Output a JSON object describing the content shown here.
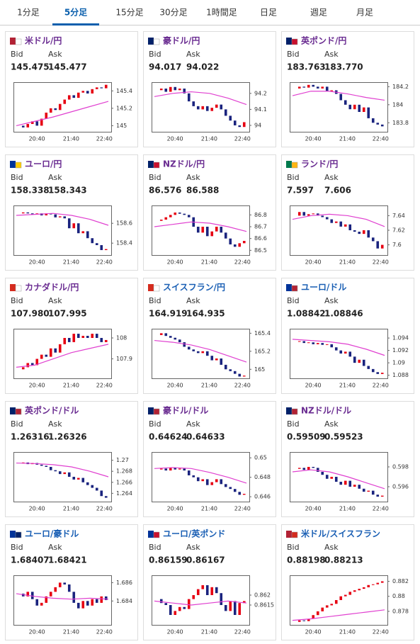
{
  "tabs": [
    "1分足",
    "5分足",
    "15分足",
    "30分足",
    "1時間足",
    "日足",
    "週足",
    "月足"
  ],
  "active_tab": 1,
  "labels": {
    "bid": "Bid",
    "ask": "Ask"
  },
  "time_labels": [
    "20:40",
    "21:40",
    "22:40"
  ],
  "cards": [
    {
      "pair": "米ドル/円",
      "color": "#6a2c91",
      "bid": "145.475",
      "ask": "145.477",
      "chart": {
        "type": "candlestick",
        "ylim": [
          144.93,
          145.5
        ],
        "yticks": [
          145.4,
          145.2,
          145
        ],
        "closes": [
          145.0,
          144.98,
          145.02,
          145.05,
          145.0,
          145.08,
          145.15,
          145.2,
          145.18,
          145.25,
          145.3,
          145.35,
          145.32,
          145.38,
          145.4,
          145.37,
          145.42,
          145.44,
          145.43,
          145.47
        ],
        "ma": [
          145.0,
          145.05,
          145.1,
          145.16,
          145.22,
          145.28
        ]
      }
    },
    {
      "pair": "豪ドル/円",
      "color": "#6a2c91",
      "bid": "94.017",
      "ask": "94.022",
      "chart": {
        "type": "candlestick",
        "ylim": [
          93.96,
          94.27
        ],
        "yticks": [
          94.2,
          94.1,
          94
        ],
        "closes": [
          94.22,
          94.23,
          94.21,
          94.24,
          94.22,
          94.23,
          94.2,
          94.15,
          94.12,
          94.1,
          94.12,
          94.09,
          94.11,
          94.13,
          94.1,
          94.06,
          94.03,
          94.0,
          93.99,
          94.02
        ],
        "ma": [
          94.18,
          94.2,
          94.21,
          94.2,
          94.17,
          94.13
        ]
      }
    },
    {
      "pair": "英ポンド/円",
      "color": "#6a2c91",
      "bid": "183.763",
      "ask": "183.770",
      "chart": {
        "type": "candlestick",
        "ylim": [
          183.7,
          184.25
        ],
        "yticks": [
          184.2,
          184,
          183.8
        ],
        "closes": [
          184.18,
          184.2,
          184.19,
          184.22,
          184.2,
          184.18,
          184.2,
          184.15,
          184.16,
          184.12,
          184.05,
          184.0,
          183.95,
          184.0,
          183.92,
          183.97,
          183.85,
          183.8,
          183.78,
          183.76
        ],
        "ma": [
          184.1,
          184.15,
          184.15,
          184.12,
          184.08,
          184.05
        ]
      }
    },
    {
      "pair": "ユーロ/円",
      "color": "#6a2c91",
      "bid": "158.338",
      "ask": "158.343",
      "chart": {
        "type": "candlestick",
        "ylim": [
          158.28,
          158.78
        ],
        "yticks": [
          158.6,
          158.4
        ],
        "closes": [
          158.7,
          158.71,
          158.7,
          158.69,
          158.7,
          158.68,
          158.7,
          158.69,
          158.66,
          158.67,
          158.65,
          158.55,
          158.6,
          158.5,
          158.52,
          158.45,
          158.4,
          158.38,
          158.33,
          158.34
        ],
        "ma": [
          158.68,
          158.69,
          158.7,
          158.68,
          158.64,
          158.58
        ]
      }
    },
    {
      "pair": "NZドル/円",
      "color": "#6a2c91",
      "bid": "86.576",
      "ask": "86.588",
      "chart": {
        "type": "candlestick",
        "ylim": [
          86.46,
          86.88
        ],
        "yticks": [
          86.8,
          86.7,
          86.6,
          86.5
        ],
        "closes": [
          86.75,
          86.76,
          86.78,
          86.8,
          86.82,
          86.81,
          86.8,
          86.78,
          86.7,
          86.65,
          86.7,
          86.62,
          86.66,
          86.7,
          86.65,
          86.6,
          86.55,
          86.53,
          86.56,
          86.58
        ],
        "ma": [
          86.7,
          86.72,
          86.74,
          86.73,
          86.7,
          86.66
        ]
      }
    },
    {
      "pair": "ランド/円",
      "color": "#6a2c91",
      "bid": "7.597",
      "ask": "7.606",
      "chart": {
        "type": "candlestick",
        "ylim": [
          7.586,
          7.654
        ],
        "yticks": [
          7.64,
          7.62,
          7.6
        ],
        "closes": [
          7.64,
          7.645,
          7.64,
          7.642,
          7.643,
          7.64,
          7.638,
          7.635,
          7.63,
          7.632,
          7.625,
          7.628,
          7.62,
          7.618,
          7.615,
          7.62,
          7.61,
          7.605,
          7.595,
          7.6
        ],
        "ma": [
          7.635,
          7.64,
          7.642,
          7.64,
          7.635,
          7.625
        ]
      }
    },
    {
      "pair": "カナダドル/円",
      "color": "#6a2c91",
      "bid": "107.980",
      "ask": "107.995",
      "chart": {
        "type": "candlestick",
        "ylim": [
          107.807,
          108.044
        ],
        "yticks": [
          108,
          107.9
        ],
        "closes": [
          107.85,
          107.86,
          107.88,
          107.87,
          107.9,
          107.92,
          107.91,
          107.95,
          107.93,
          107.97,
          108.0,
          107.98,
          108.02,
          108.0,
          108.01,
          108.0,
          108.02,
          108.0,
          107.98,
          107.99
        ],
        "ma": [
          107.86,
          107.87,
          107.9,
          107.93,
          107.95,
          107.97
        ]
      }
    },
    {
      "pair": "スイスフラン/円",
      "color": "#1a5fb4",
      "bid": "164.919",
      "ask": "164.935",
      "chart": {
        "type": "candlestick",
        "ylim": [
          164.9,
          165.45
        ],
        "yticks": [
          165.4,
          165.2,
          165
        ],
        "closes": [
          165.38,
          165.4,
          165.37,
          165.35,
          165.33,
          165.3,
          165.25,
          165.22,
          165.2,
          165.18,
          165.2,
          165.15,
          165.1,
          165.12,
          165.05,
          165.0,
          164.98,
          164.95,
          164.92,
          164.93
        ],
        "ma": [
          165.32,
          165.3,
          165.27,
          165.22,
          165.15,
          165.08
        ]
      }
    },
    {
      "pair": "ユーロ/ドル",
      "color": "#1a5fb4",
      "bid": "1.08842",
      "ask": "1.08846",
      "chart": {
        "type": "candlestick",
        "ylim": [
          1.0875,
          1.0955
        ],
        "yticks": [
          1.094,
          1.092,
          1.09,
          1.088
        ],
        "closes": [
          1.0935,
          1.0935,
          1.0932,
          1.0933,
          1.093,
          1.0932,
          1.0929,
          1.093,
          1.0925,
          1.092,
          1.0915,
          1.0918,
          1.091,
          1.09,
          1.0905,
          1.0895,
          1.089,
          1.0885,
          1.0882,
          1.0884
        ],
        "ma": [
          1.0938,
          1.0936,
          1.0934,
          1.093,
          1.0922,
          1.0912
        ]
      }
    },
    {
      "pair": "英ポンド/ドル",
      "color": "#6a2c91",
      "bid": "1.26316",
      "ask": "1.26326",
      "chart": {
        "type": "candlestick",
        "ylim": [
          1.2625,
          1.2715
        ],
        "yticks": [
          1.27,
          1.268,
          1.266,
          1.264
        ],
        "closes": [
          1.2695,
          1.2696,
          1.2693,
          1.2695,
          1.2692,
          1.269,
          1.2688,
          1.2682,
          1.268,
          1.2675,
          1.2678,
          1.267,
          1.2665,
          1.2668,
          1.266,
          1.2655,
          1.265,
          1.2645,
          1.2635,
          1.2632
        ],
        "ma": [
          1.2695,
          1.2694,
          1.2692,
          1.2688,
          1.268,
          1.267
        ]
      }
    },
    {
      "pair": "豪ドル/ドル",
      "color": "#6a2c91",
      "bid": "0.64624",
      "ask": "0.64633",
      "chart": {
        "type": "candlestick",
        "ylim": [
          0.6455,
          0.6506
        ],
        "yticks": [
          0.65,
          0.648,
          0.646
        ],
        "closes": [
          0.6488,
          0.6489,
          0.6487,
          0.649,
          0.6488,
          0.6489,
          0.6487,
          0.6482,
          0.648,
          0.6476,
          0.6478,
          0.6472,
          0.6475,
          0.6478,
          0.6473,
          0.647,
          0.6468,
          0.6465,
          0.6462,
          0.6463
        ],
        "ma": [
          0.6489,
          0.649,
          0.6489,
          0.6485,
          0.648,
          0.6474
        ]
      }
    },
    {
      "pair": "NZドル/ドル",
      "color": "#6a2c91",
      "bid": "0.59509",
      "ask": "0.59523",
      "chart": {
        "type": "candlestick",
        "ylim": [
          0.5945,
          0.5995
        ],
        "yticks": [
          0.598,
          0.596
        ],
        "closes": [
          0.5978,
          0.5979,
          0.5977,
          0.598,
          0.5979,
          0.5975,
          0.5972,
          0.5968,
          0.597,
          0.5965,
          0.5962,
          0.5966,
          0.596,
          0.5962,
          0.5958,
          0.5955,
          0.5956,
          0.5952,
          0.595,
          0.5951
        ],
        "ma": [
          0.5975,
          0.5977,
          0.5975,
          0.597,
          0.5964,
          0.5958
        ]
      }
    },
    {
      "pair": "ユーロ/豪ドル",
      "color": "#1a5fb4",
      "bid": "1.68407",
      "ask": "1.68421",
      "chart": {
        "type": "candlestick",
        "ylim": [
          1.6814,
          1.6868
        ],
        "yticks": [
          1.686,
          1.684
        ],
        "closes": [
          1.6848,
          1.6845,
          1.685,
          1.6842,
          1.6835,
          1.6838,
          1.6845,
          1.685,
          1.6855,
          1.686,
          1.6858,
          1.685,
          1.6838,
          1.6832,
          1.684,
          1.6835,
          1.6842,
          1.6838,
          1.6845,
          1.6841
        ],
        "ma": [
          1.6848,
          1.6845,
          1.6843,
          1.6842,
          1.6843,
          1.6842
        ]
      }
    },
    {
      "pair": "ユーロ/英ポンド",
      "color": "#1a5fb4",
      "bid": "0.86159",
      "ask": "0.86167",
      "chart": {
        "type": "candlestick",
        "ylim": [
          0.8605,
          0.863
        ],
        "yticks": [
          0.862,
          0.8615
        ],
        "closes": [
          0.8618,
          0.8616,
          0.8615,
          0.861,
          0.8612,
          0.8614,
          0.8613,
          0.8618,
          0.862,
          0.8623,
          0.8625,
          0.862,
          0.8624,
          0.8621,
          0.8615,
          0.8612,
          0.8617,
          0.861,
          0.8616,
          0.8617
        ],
        "ma": [
          0.8617,
          0.8616,
          0.8615,
          0.8616,
          0.8617,
          0.8616
        ]
      }
    },
    {
      "pair": "米ドル/スイスフラン",
      "color": "#1a5fb4",
      "bid": "0.88198",
      "ask": "0.88213",
      "chart": {
        "type": "candlestick",
        "ylim": [
          0.8762,
          0.8828
        ],
        "yticks": [
          0.882,
          0.88,
          0.878
        ],
        "closes": [
          0.8766,
          0.8768,
          0.8767,
          0.877,
          0.8775,
          0.878,
          0.8785,
          0.8788,
          0.879,
          0.8795,
          0.88,
          0.8802,
          0.8806,
          0.8808,
          0.881,
          0.8812,
          0.8815,
          0.8816,
          0.8818,
          0.882
        ],
        "ma": [
          0.8768,
          0.877,
          0.8773,
          0.8776,
          0.8779,
          0.8782
        ]
      }
    }
  ]
}
